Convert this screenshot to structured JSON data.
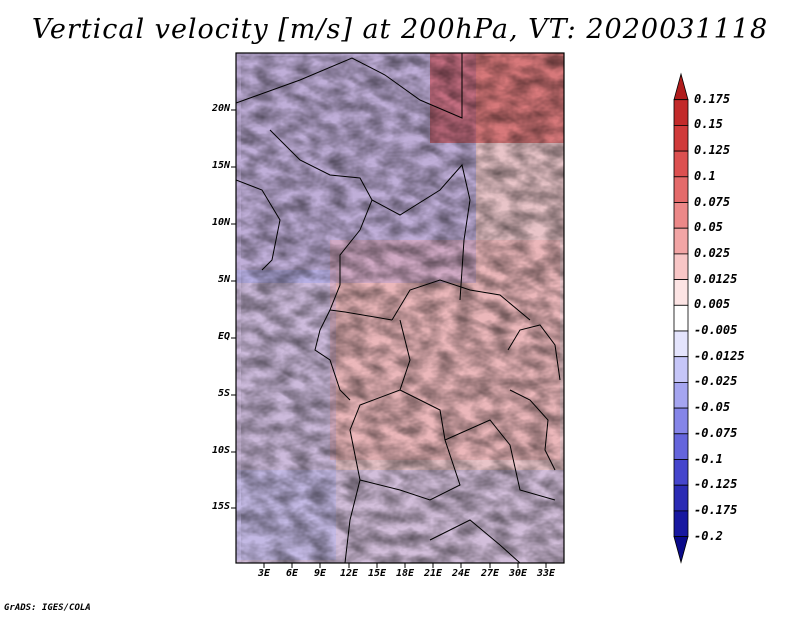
{
  "title": "Vertical velocity [m/s] at 200hPa, VT: 2020031118",
  "footer": "GrADS: IGES/COLA",
  "chart_data": {
    "type": "heatmap",
    "title": "Vertical velocity [m/s] at 200hPa, VT: 2020031118",
    "variable": "Vertical velocity",
    "units": "m/s",
    "level": "200hPa",
    "valid_time": "2020031118",
    "lat_ticks": [
      "20N",
      "15N",
      "10N",
      "5N",
      "EQ",
      "5S",
      "10S",
      "15S"
    ],
    "lon_ticks": [
      "3E",
      "6E",
      "9E",
      "12E",
      "15E",
      "18E",
      "21E",
      "24E",
      "27E",
      "30E",
      "33E"
    ],
    "lat_range": [
      -20,
      25
    ],
    "lon_range": [
      0,
      35
    ],
    "colorbar": {
      "levels": [
        "0.175",
        "0.15",
        "0.125",
        "0.1",
        "0.075",
        "0.05",
        "0.025",
        "0.0125",
        "0.005",
        "-0.005",
        "-0.0125",
        "-0.025",
        "-0.05",
        "-0.075",
        "-0.1",
        "-0.125",
        "-0.175",
        "-0.2"
      ],
      "colors": [
        "#b01c1c",
        "#c22a2a",
        "#d03a3a",
        "#dc5050",
        "#e46a6a",
        "#ec8888",
        "#f2a5a5",
        "#f8c6c6",
        "#fce4e4",
        "#ffffff",
        "#e4e4fc",
        "#c6c6f8",
        "#a5a5f0",
        "#8585e8",
        "#6565dc",
        "#4545cc",
        "#2b2bb4",
        "#1818a0",
        "#0a0a8a"
      ]
    }
  }
}
